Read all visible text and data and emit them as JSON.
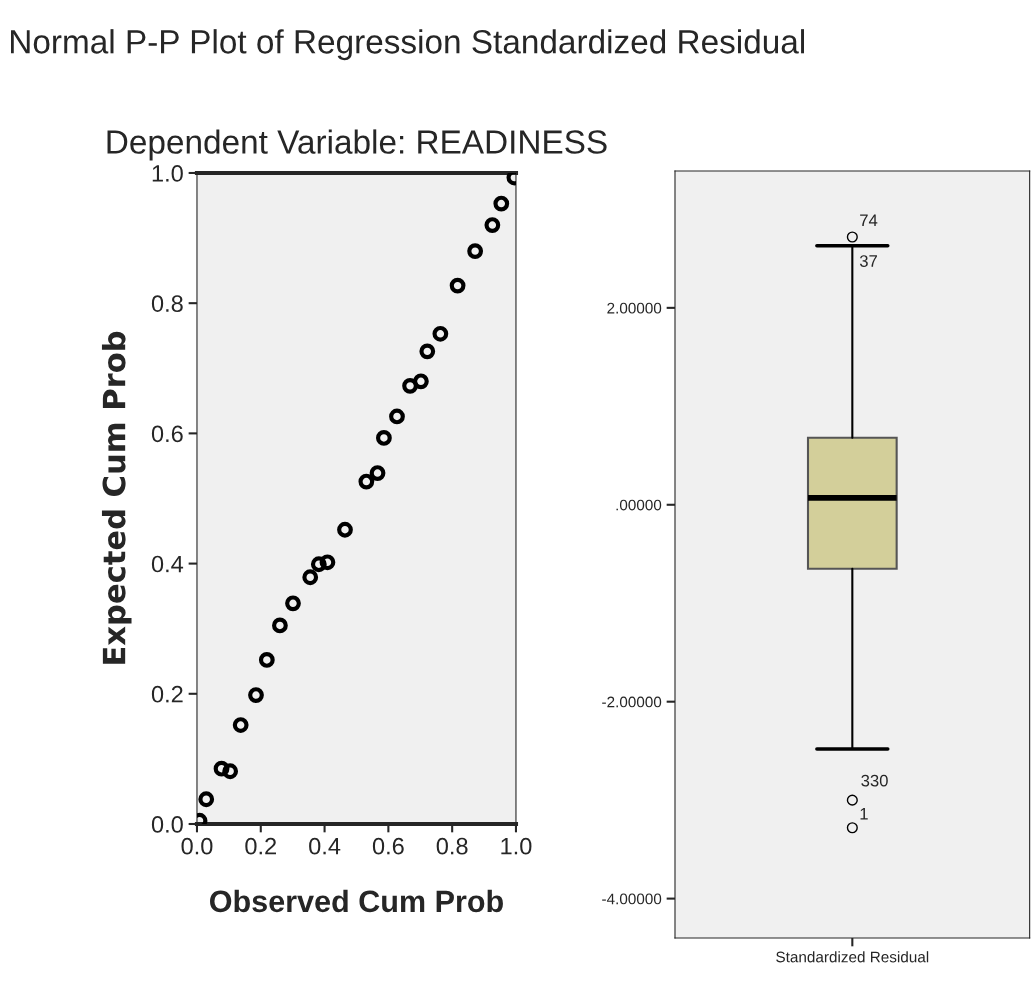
{
  "chart_data": [
    {
      "type": "scatter",
      "title": "Normal P-P Plot of Regression Standardized Residual",
      "subtitle": "Dependent Variable: READINESS",
      "xlabel": "Observed Cum Prob",
      "ylabel": "Expected Cum Prob",
      "marker": "circle",
      "grid": false,
      "series": [
        {
          "color": "#000000",
          "x": [
            0.008,
            0.029,
            0.077,
            0.104,
            0.137,
            0.185,
            0.219,
            0.26,
            0.301,
            0.355,
            0.382,
            0.409,
            0.464,
            0.531,
            0.566,
            0.586,
            0.627,
            0.668,
            0.702,
            0.722,
            0.763,
            0.817,
            0.872,
            0.926,
            0.954,
            0.995
          ],
          "values": [
            0.005,
            0.038,
            0.085,
            0.081,
            0.152,
            0.198,
            0.252,
            0.305,
            0.339,
            0.379,
            0.399,
            0.402,
            0.452,
            0.526,
            0.539,
            0.593,
            0.626,
            0.673,
            0.68,
            0.726,
            0.753,
            0.827,
            0.88,
            0.92,
            0.953,
            0.993
          ]
        }
      ],
      "xlim": [
        0,
        1
      ],
      "ylim": [
        0,
        1
      ],
      "xticks": [
        {
          "value": 0,
          "label": "0.0"
        },
        {
          "value": 0.2,
          "label": "0.2"
        },
        {
          "value": 0.4,
          "label": "0.4"
        },
        {
          "value": 0.6,
          "label": "0.6"
        },
        {
          "value": 0.8,
          "label": "0.8"
        },
        {
          "value": 1,
          "label": "1.0"
        }
      ],
      "yticks": [
        {
          "value": 0,
          "label": "0.0"
        },
        {
          "value": 0.2,
          "label": "0.2"
        },
        {
          "value": 0.4,
          "label": "0.4"
        },
        {
          "value": 0.6,
          "label": "0.6"
        },
        {
          "value": 0.8,
          "label": "0.8"
        },
        {
          "value": 1,
          "label": "1.0"
        }
      ]
    },
    {
      "type": "box",
      "categories": [
        "Standardized Residual"
      ],
      "grid": false,
      "boxes": [
        {
          "low": -2.48,
          "q1": -0.65,
          "median": 0.07,
          "q3": 0.68,
          "high": 2.63,
          "outliers": [
            2.72,
            -3.0,
            -3.28
          ]
        }
      ],
      "colors": [
        "#d3cf9a"
      ],
      "ylim": [
        -4.4,
        3.39
      ],
      "yticks": [
        {
          "value": 2,
          "label": "2.00000"
        },
        {
          "value": 0,
          "label": ".00000"
        },
        {
          "value": -2,
          "label": "-2.00000"
        },
        {
          "value": -4,
          "label": "-4.00000"
        }
      ],
      "annotations": [
        "74",
        "37",
        "330",
        "1"
      ]
    }
  ]
}
